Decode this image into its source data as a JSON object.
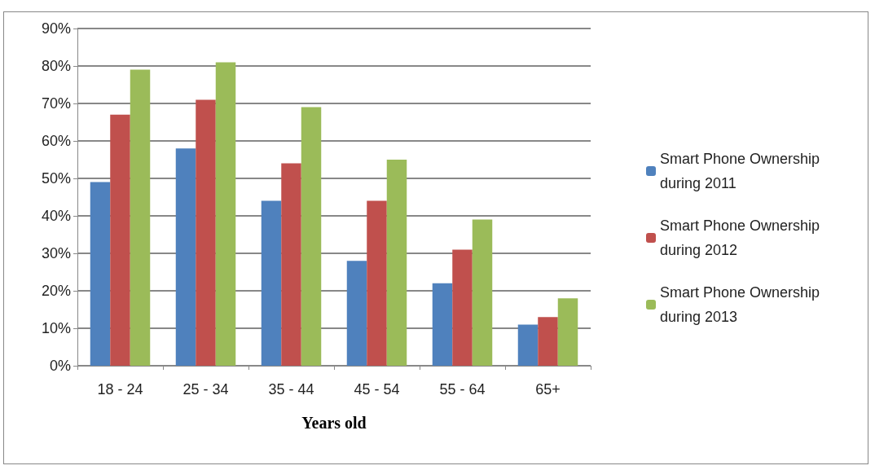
{
  "chart_data": {
    "type": "bar",
    "xlabel": "Years old",
    "categories": [
      "18 - 24",
      "25 - 34",
      "35 - 44",
      "45 - 54",
      "55 - 64",
      "65+"
    ],
    "series": [
      {
        "name": "Smart Phone Ownership during 2011",
        "color": "#4f81bd",
        "values": [
          49,
          58,
          44,
          28,
          22,
          11
        ]
      },
      {
        "name": "Smart Phone Ownership during 2012",
        "color": "#c0504d",
        "values": [
          67,
          71,
          54,
          44,
          31,
          13
        ]
      },
      {
        "name": "Smart Phone Ownership during 2013",
        "color": "#9bbb59",
        "values": [
          79,
          81,
          69,
          55,
          39,
          18
        ]
      }
    ],
    "ylim": [
      0,
      90
    ],
    "yticks": [
      {
        "value": 0,
        "label": "0%"
      },
      {
        "value": 10,
        "label": "10%"
      },
      {
        "value": 20,
        "label": "20%"
      },
      {
        "value": 30,
        "label": "30%"
      },
      {
        "value": 40,
        "label": "40%"
      },
      {
        "value": 50,
        "label": "50%"
      },
      {
        "value": 60,
        "label": "60%"
      },
      {
        "value": 70,
        "label": "70%"
      },
      {
        "value": 80,
        "label": "80%"
      },
      {
        "value": 90,
        "label": "90%"
      }
    ],
    "grid": "y",
    "legend": "right"
  }
}
